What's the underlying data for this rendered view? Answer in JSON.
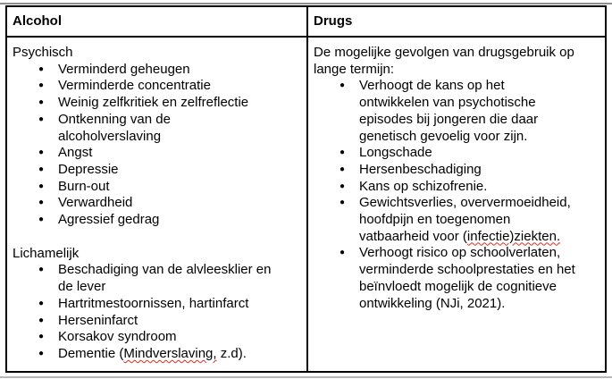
{
  "colors": {
    "table_border": "#000000",
    "text": "#000000",
    "misspell_squiggle": "#e02b1d",
    "top_rule": "#8f8f8f",
    "bottom_rule": "#b7b7b7"
  },
  "misspelled": [
    "Mindverslaving,",
    "infectie)ziekten."
  ],
  "table": {
    "header": [
      "Alcohol",
      "Drugs"
    ],
    "left": {
      "sections": [
        {
          "title": "Psychisch",
          "items": [
            "Verminderd geheugen",
            "Verminderde concentratie",
            "Weinig zelfkritiek en zelfreflectie",
            "Ontkenning van de\nalcoholverslaving",
            "Angst",
            "Depressie",
            "Burn-out",
            "Verwardheid",
            "Agressief gedrag"
          ]
        },
        {
          "title": "Lichamelijk",
          "items": [
            "Beschadiging van de alvleesklier en\nde lever",
            "Hartritmestoornissen, hartinfarct",
            "Herseninfarct",
            "Korsakov syndroom",
            "Dementie (Mindverslaving, z.d)."
          ]
        }
      ]
    },
    "right": {
      "intro": "De mogelijke gevolgen van drugsgebruik op\nlange termijn:",
      "items": [
        "Verhoogt de kans op het\nontwikkelen van psychotische\nepisodes bij jongeren die daar\ngenetisch gevoelig voor zijn.",
        "Longschade",
        "Hersenbeschadiging",
        "Kans op schizofrenie.",
        "Gewichtsverlies, oververmoeidheid,\nhoofdpijn en toegenomen\nvatbaarheid voor (infectie)ziekten.",
        "Verhoogt risico op schoolverlaten,\nverminderde schoolprestaties en het\nbeïnvloedt mogelijk de cognitieve\nontwikkeling (NJi, 2021)."
      ]
    }
  }
}
